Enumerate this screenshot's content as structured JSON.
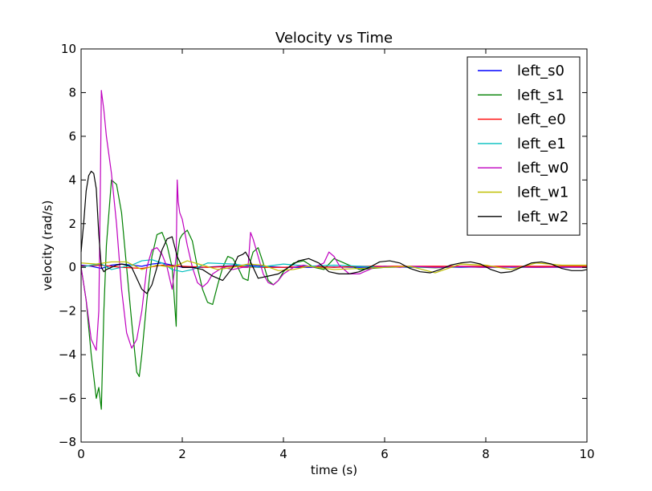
{
  "chart_data": {
    "type": "line",
    "title": "Velocity vs Time",
    "xlabel": "time (s)",
    "ylabel": "velocity (rad/s)",
    "xlim": [
      0,
      10
    ],
    "ylim": [
      -8,
      10
    ],
    "xticks": [
      0,
      2,
      4,
      6,
      8,
      10
    ],
    "yticks": [
      -8,
      -6,
      -4,
      -2,
      0,
      2,
      4,
      6,
      8,
      10
    ],
    "grid": false,
    "legend_position": "top-right",
    "series": [
      {
        "name": "left_s0",
        "color": "#0000ff",
        "x": [
          0,
          0.2,
          0.4,
          0.6,
          0.8,
          1.0,
          1.2,
          1.4,
          1.6,
          1.8,
          2.0,
          2.4,
          2.8,
          3.2,
          3.6,
          4.0,
          4.5,
          5.0,
          5.5,
          6.0,
          6.5,
          7.0,
          7.5,
          8.0,
          8.5,
          9.0,
          9.5,
          10.0
        ],
        "y": [
          0.1,
          0.05,
          -0.05,
          0.1,
          0.15,
          0.1,
          0.05,
          0.15,
          0.2,
          0.1,
          0.0,
          0.0,
          0.05,
          0.1,
          0.05,
          0.0,
          0.0,
          0.02,
          0.0,
          0.02,
          0.0,
          0.02,
          0.0,
          0.02,
          0.0,
          0.02,
          0.0,
          0.01
        ]
      },
      {
        "name": "left_s1",
        "color": "#008000",
        "x": [
          0,
          0.1,
          0.2,
          0.3,
          0.35,
          0.4,
          0.45,
          0.5,
          0.6,
          0.7,
          0.8,
          0.9,
          1.0,
          1.1,
          1.15,
          1.2,
          1.3,
          1.4,
          1.5,
          1.6,
          1.7,
          1.8,
          1.88,
          1.9,
          1.95,
          2.0,
          2.1,
          2.2,
          2.3,
          2.4,
          2.5,
          2.6,
          2.7,
          2.8,
          2.9,
          3.0,
          3.1,
          3.2,
          3.3,
          3.35,
          3.4,
          3.5,
          3.6,
          3.7,
          3.8,
          3.9,
          4.0,
          4.2,
          4.4,
          4.6,
          4.8,
          5.0,
          5.2,
          5.5,
          6.0,
          6.5,
          7.0,
          7.5,
          8.0,
          8.5,
          9.0,
          9.5,
          10.0
        ],
        "y": [
          0.0,
          -1.5,
          -4.0,
          -6.0,
          -5.5,
          -6.5,
          -2.0,
          1.0,
          4.0,
          3.8,
          2.5,
          0.0,
          -2.5,
          -4.8,
          -5.0,
          -4.0,
          -1.5,
          0.5,
          1.5,
          1.6,
          1.0,
          0.0,
          -2.7,
          0.5,
          1.3,
          1.5,
          1.7,
          1.2,
          0.0,
          -1.0,
          -1.6,
          -1.7,
          -0.8,
          0.0,
          0.5,
          0.4,
          0.0,
          -0.5,
          -0.6,
          0.3,
          0.7,
          0.9,
          0.2,
          -0.6,
          -0.8,
          -0.6,
          -0.2,
          0.2,
          0.3,
          0.0,
          -0.1,
          0.4,
          0.2,
          -0.1,
          0.0,
          0.02,
          -0.02,
          0.02,
          0.0,
          0.01,
          0.0,
          0.01,
          0.0
        ]
      },
      {
        "name": "left_e0",
        "color": "#ff0000",
        "x": [
          0,
          0.4,
          0.8,
          1.2,
          1.6,
          2.0,
          2.5,
          3.0,
          3.5,
          4.0,
          4.5,
          5.0,
          5.5,
          6.0,
          6.5,
          7.0,
          7.5,
          8.0,
          8.5,
          9.0,
          9.5,
          10.0
        ],
        "y": [
          0.05,
          0.1,
          0.0,
          -0.05,
          0.1,
          0.05,
          0.0,
          0.05,
          0.0,
          0.0,
          0.05,
          0.0,
          0.05,
          0.05,
          0.05,
          0.05,
          0.05,
          0.05,
          0.05,
          0.05,
          0.05,
          0.05
        ]
      },
      {
        "name": "left_e1",
        "color": "#00bfbf",
        "x": [
          0,
          0.2,
          0.4,
          0.6,
          0.8,
          1.0,
          1.2,
          1.4,
          1.6,
          1.8,
          2.0,
          2.2,
          2.5,
          3.0,
          3.5,
          4.0,
          4.5,
          5.0,
          5.5,
          6.0,
          6.5,
          7.0,
          7.5,
          8.0,
          8.5,
          9.0,
          9.5,
          10.0
        ],
        "y": [
          0.0,
          0.1,
          0.15,
          -0.1,
          0.0,
          0.1,
          0.3,
          0.35,
          0.2,
          -0.1,
          -0.2,
          -0.1,
          0.2,
          0.15,
          0.0,
          0.15,
          0.05,
          0.1,
          0.05,
          0.0,
          0.02,
          0.0,
          0.02,
          0.0,
          0.01,
          0.0,
          0.01,
          0.0
        ]
      },
      {
        "name": "left_w0",
        "color": "#bf00bf",
        "x": [
          0,
          0.1,
          0.2,
          0.3,
          0.35,
          0.38,
          0.4,
          0.45,
          0.5,
          0.6,
          0.7,
          0.8,
          0.9,
          1.0,
          1.1,
          1.2,
          1.3,
          1.4,
          1.5,
          1.6,
          1.7,
          1.8,
          1.88,
          1.9,
          1.92,
          1.95,
          2.0,
          2.1,
          2.2,
          2.3,
          2.4,
          2.5,
          2.6,
          2.8,
          3.0,
          3.2,
          3.3,
          3.35,
          3.4,
          3.5,
          3.6,
          3.7,
          3.8,
          3.9,
          4.0,
          4.2,
          4.4,
          4.6,
          4.8,
          4.9,
          5.0,
          5.1,
          5.3,
          5.5,
          5.8,
          6.0,
          6.3,
          6.5,
          7.0,
          7.5,
          8.0,
          8.5,
          9.0,
          9.5,
          10.0
        ],
        "y": [
          0.0,
          -1.5,
          -3.3,
          -3.8,
          -2.0,
          3.5,
          8.1,
          7.2,
          6.0,
          4.3,
          2.0,
          -1.0,
          -3.0,
          -3.7,
          -3.3,
          -2.0,
          0.0,
          0.8,
          0.9,
          0.6,
          0.0,
          -1.0,
          0.5,
          4.0,
          3.0,
          2.5,
          2.2,
          1.0,
          0.0,
          -0.7,
          -0.9,
          -0.7,
          -0.3,
          0.0,
          -0.1,
          0.0,
          0.0,
          1.6,
          1.3,
          0.5,
          -0.3,
          -0.7,
          -0.8,
          -0.6,
          -0.3,
          0.0,
          0.1,
          0.0,
          0.2,
          0.7,
          0.5,
          0.1,
          -0.3,
          -0.3,
          0.0,
          0.05,
          0.0,
          0.05,
          0.0,
          0.03,
          0.0,
          0.02,
          0.0,
          0.01,
          0.0
        ]
      },
      {
        "name": "left_w1",
        "color": "#bfbf00",
        "x": [
          0,
          0.3,
          0.6,
          0.9,
          1.2,
          1.5,
          1.8,
          2.1,
          2.4,
          2.7,
          3.0,
          3.3,
          3.6,
          3.9,
          4.2,
          4.5,
          5.0,
          5.5,
          6.0,
          6.5,
          7.0,
          7.5,
          8.0,
          8.5,
          9.0,
          9.5,
          10.0
        ],
        "y": [
          0.2,
          0.15,
          0.25,
          0.25,
          -0.1,
          0.1,
          0.0,
          0.3,
          0.1,
          -0.1,
          0.0,
          0.15,
          0.1,
          -0.15,
          -0.1,
          0.05,
          -0.1,
          -0.05,
          0.0,
          0.05,
          -0.25,
          0.15,
          0.1,
          -0.1,
          0.2,
          0.1,
          0.1
        ]
      },
      {
        "name": "left_w2",
        "color": "#000000",
        "x": [
          0,
          0.05,
          0.1,
          0.15,
          0.2,
          0.25,
          0.3,
          0.35,
          0.4,
          0.45,
          0.5,
          0.6,
          0.7,
          0.8,
          0.9,
          1.0,
          1.1,
          1.2,
          1.3,
          1.4,
          1.5,
          1.6,
          1.7,
          1.8,
          1.9,
          2.0,
          2.2,
          2.4,
          2.6,
          2.8,
          3.0,
          3.1,
          3.2,
          3.25,
          3.3,
          3.4,
          3.5,
          3.7,
          3.9,
          4.1,
          4.3,
          4.5,
          4.7,
          4.9,
          5.1,
          5.3,
          5.5,
          5.7,
          5.9,
          6.1,
          6.3,
          6.5,
          6.7,
          6.9,
          7.1,
          7.3,
          7.5,
          7.7,
          7.9,
          8.1,
          8.3,
          8.5,
          8.7,
          8.9,
          9.1,
          9.3,
          9.5,
          9.7,
          9.9,
          10.0
        ],
        "y": [
          0.7,
          2.0,
          3.5,
          4.2,
          4.4,
          4.3,
          3.6,
          1.5,
          0.0,
          -0.2,
          -0.1,
          0.0,
          0.1,
          0.15,
          0.1,
          0.0,
          -0.5,
          -1.0,
          -1.2,
          -0.8,
          0.0,
          0.8,
          1.3,
          1.4,
          0.5,
          0.0,
          0.0,
          -0.1,
          -0.4,
          -0.6,
          0.0,
          0.5,
          0.6,
          0.7,
          0.5,
          0.0,
          -0.5,
          -0.4,
          -0.3,
          0.0,
          0.3,
          0.4,
          0.2,
          -0.2,
          -0.3,
          -0.3,
          -0.2,
          0.0,
          0.25,
          0.3,
          0.2,
          -0.05,
          -0.2,
          -0.25,
          -0.1,
          0.1,
          0.2,
          0.25,
          0.15,
          -0.1,
          -0.25,
          -0.2,
          0.0,
          0.2,
          0.25,
          0.15,
          -0.05,
          -0.15,
          -0.15,
          -0.1
        ]
      }
    ]
  }
}
